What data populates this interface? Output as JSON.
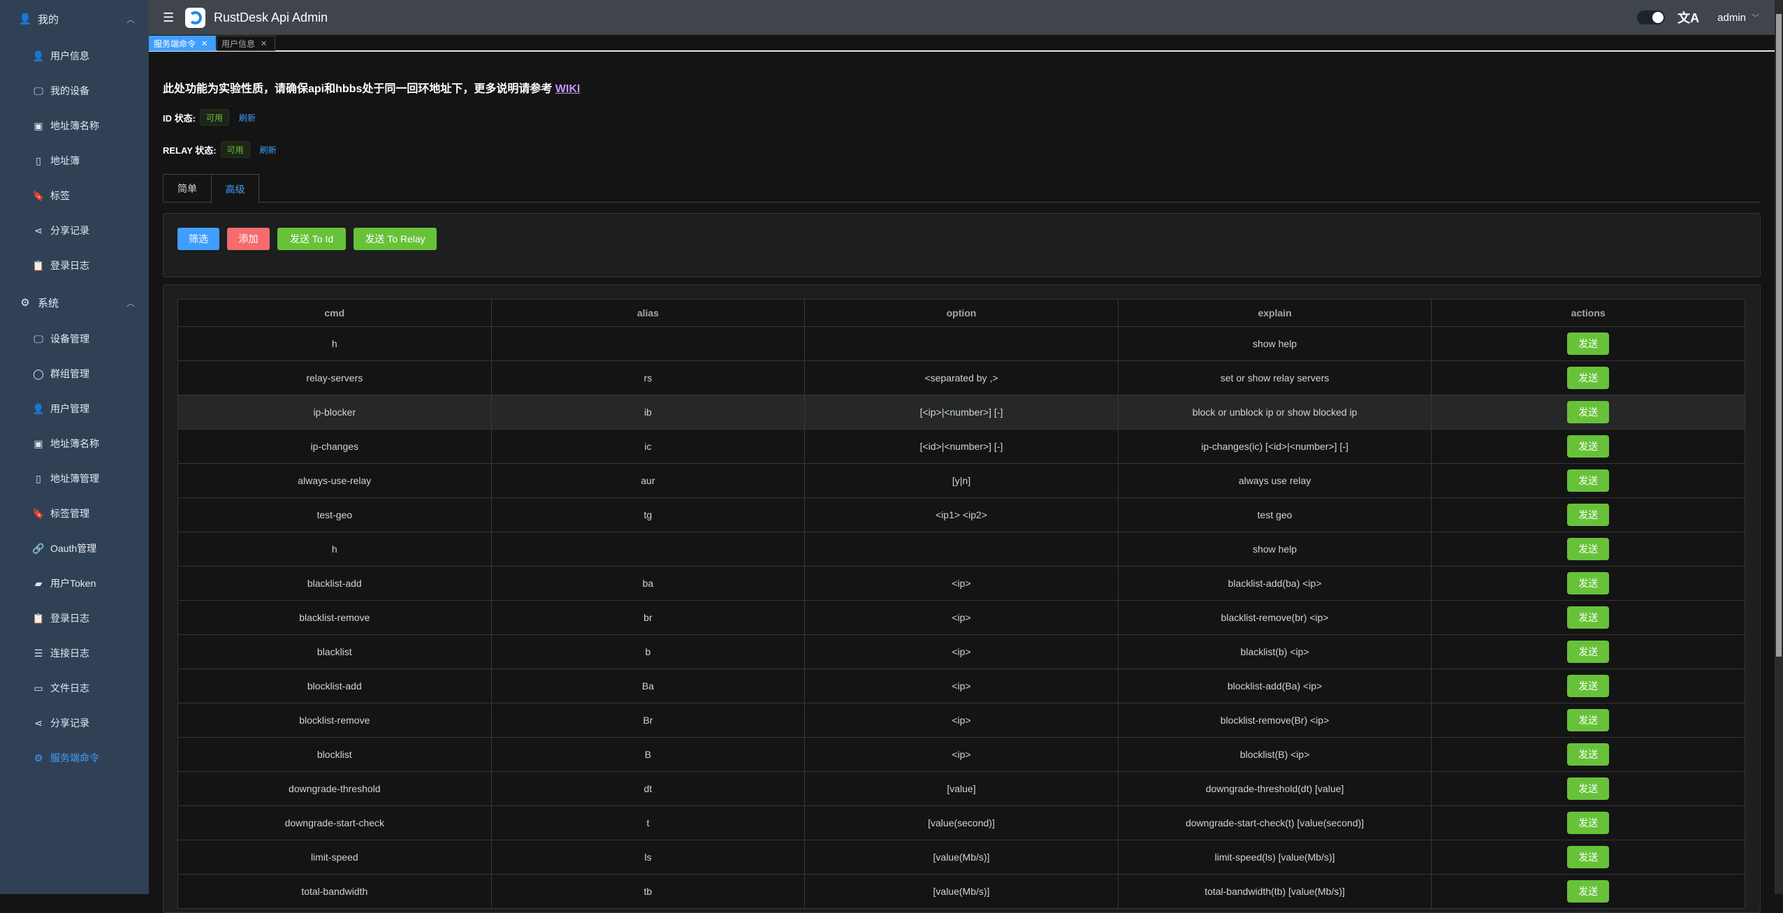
{
  "colors": {
    "sidebar": "#304156",
    "header": "#40454c",
    "primary": "#409eff",
    "success": "#67c23a",
    "danger": "#f56c6c"
  },
  "sidebar": {
    "groups": [
      {
        "label": "我的",
        "icon": "user-icon",
        "items": [
          {
            "label": "用户信息",
            "icon": "user-icon"
          },
          {
            "label": "我的设备",
            "icon": "monitor-icon"
          },
          {
            "label": "地址簿名称",
            "icon": "book-icon"
          },
          {
            "label": "地址簿",
            "icon": "notebook-icon"
          },
          {
            "label": "标签",
            "icon": "bookmark-icon"
          },
          {
            "label": "分享记录",
            "icon": "share-icon"
          },
          {
            "label": "登录日志",
            "icon": "clipboard-icon"
          }
        ]
      },
      {
        "label": "系统",
        "icon": "gear-icon",
        "items": [
          {
            "label": "设备管理",
            "icon": "monitor-icon"
          },
          {
            "label": "群组管理",
            "icon": "chat-icon"
          },
          {
            "label": "用户管理",
            "icon": "user-icon"
          },
          {
            "label": "地址簿名称",
            "icon": "book-icon"
          },
          {
            "label": "地址簿管理",
            "icon": "notebook-icon"
          },
          {
            "label": "标签管理",
            "icon": "bookmark-icon"
          },
          {
            "label": "Oauth管理",
            "icon": "link-icon"
          },
          {
            "label": "用户Token",
            "icon": "ticket-icon"
          },
          {
            "label": "登录日志",
            "icon": "clipboard-icon"
          },
          {
            "label": "连接日志",
            "icon": "document-icon"
          },
          {
            "label": "文件日志",
            "icon": "box-icon"
          },
          {
            "label": "分享记录",
            "icon": "share-icon"
          },
          {
            "label": "服务端命令",
            "icon": "gear-icon",
            "active": true
          }
        ]
      }
    ]
  },
  "header": {
    "title": "RustDesk Api Admin",
    "user": "admin",
    "lang_icon": "translate-icon",
    "theme_icon": "moon-icon"
  },
  "tags": [
    {
      "label": "服务端命令",
      "active": true
    },
    {
      "label": "用户信息",
      "active": false
    }
  ],
  "main": {
    "warning": "此处功能为实验性质，请确保api和hbbs处于同一回环地址下，更多说明请参考 ",
    "wiki": "WIKI",
    "id_status": {
      "label": "ID 状态:",
      "value": "可用",
      "refresh": "刷新"
    },
    "relay_status": {
      "label": "RELAY 状态:",
      "value": "可用",
      "refresh": "刷新"
    },
    "tabs": [
      {
        "label": "简单",
        "active": false
      },
      {
        "label": "高级",
        "active": true
      }
    ],
    "toolbar": {
      "filter": "筛选",
      "add": "添加",
      "send_id": "发送 To Id",
      "send_relay": "发送 To Relay"
    },
    "table": {
      "columns": [
        "cmd",
        "alias",
        "option",
        "explain",
        "actions"
      ],
      "action_label": "发送",
      "rows": [
        [
          "h",
          "",
          "",
          "show help"
        ],
        [
          "relay-servers",
          "rs",
          "<separated by ,>",
          "set or show relay servers"
        ],
        [
          "ip-blocker",
          "ib",
          "[<ip>|<number>] [-]",
          "block or unblock ip or show blocked ip"
        ],
        [
          "ip-changes",
          "ic",
          "[<id>|<number>] [-]",
          "ip-changes(ic) [<id>|<number>] [-]"
        ],
        [
          "always-use-relay",
          "aur",
          "[y|n]",
          "always use relay"
        ],
        [
          "test-geo",
          "tg",
          "<ip1> <ip2>",
          "test geo"
        ],
        [
          "h",
          "",
          "",
          "show help"
        ],
        [
          "blacklist-add",
          "ba",
          "<ip>",
          "blacklist-add(ba) <ip>"
        ],
        [
          "blacklist-remove",
          "br",
          "<ip>",
          "blacklist-remove(br) <ip>"
        ],
        [
          "blacklist",
          "b",
          "<ip>",
          "blacklist(b) <ip>"
        ],
        [
          "blocklist-add",
          "Ba",
          "<ip>",
          "blocklist-add(Ba) <ip>"
        ],
        [
          "blocklist-remove",
          "Br",
          "<ip>",
          "blocklist-remove(Br) <ip>"
        ],
        [
          "blocklist",
          "B",
          "<ip>",
          "blocklist(B) <ip>"
        ],
        [
          "downgrade-threshold",
          "dt",
          "[value]",
          "downgrade-threshold(dt) [value]"
        ],
        [
          "downgrade-start-check",
          "t",
          "[value(second)]",
          "downgrade-start-check(t) [value(second)]"
        ],
        [
          "limit-speed",
          "ls",
          "[value(Mb/s)]",
          "limit-speed(ls) [value(Mb/s)]"
        ],
        [
          "total-bandwidth",
          "tb",
          "[value(Mb/s)]",
          "total-bandwidth(tb) [value(Mb/s)]"
        ]
      ]
    }
  }
}
